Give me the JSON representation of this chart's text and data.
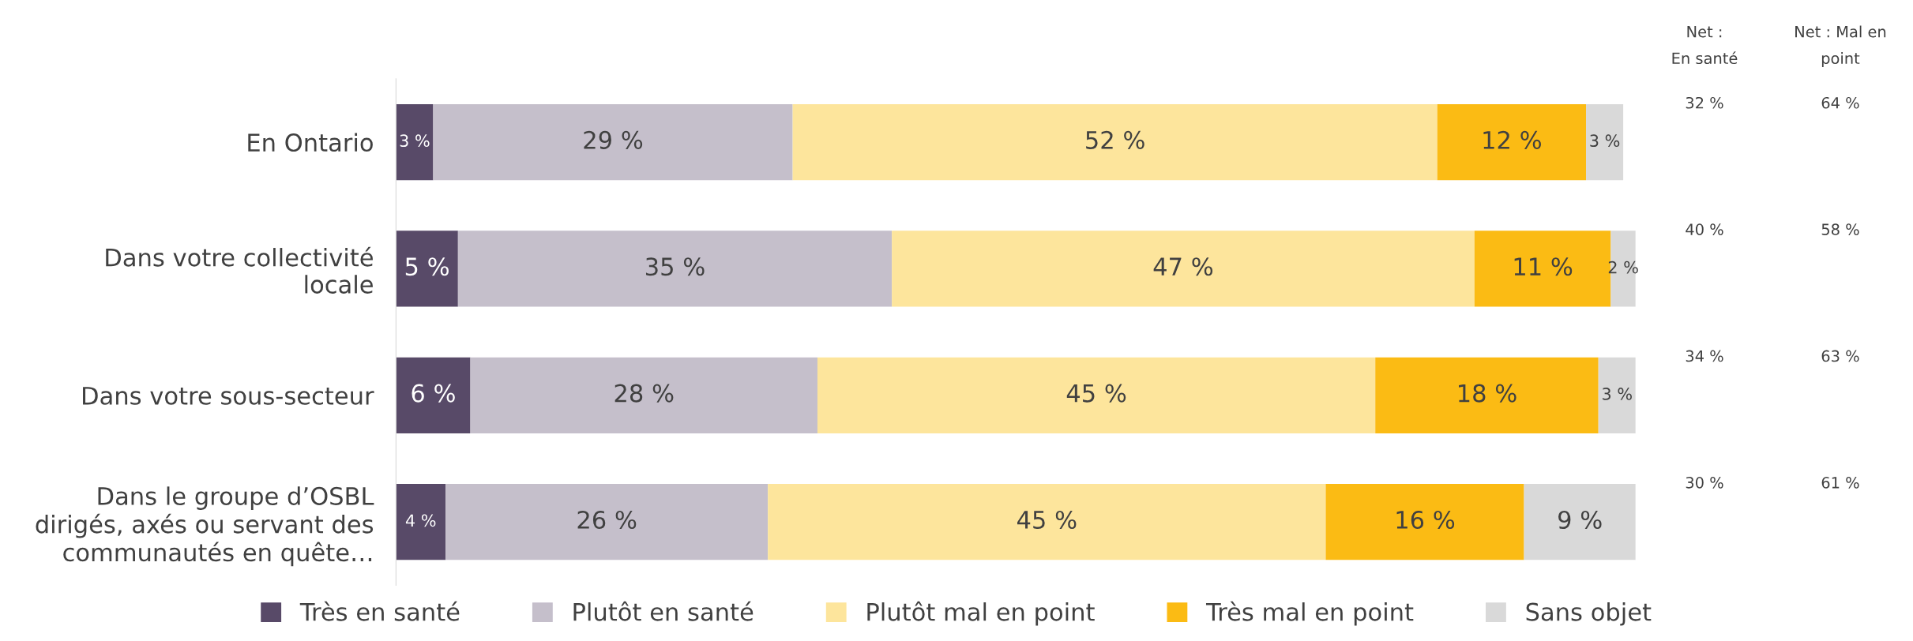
{
  "chart_data": {
    "type": "bar",
    "orientation": "horizontal",
    "stacked": true,
    "data_labels": true,
    "legend": "bottom",
    "grid": false,
    "categories": [
      "En Ontario",
      "Dans votre collectivité\nlocale",
      "Dans votre sous-secteur",
      "Dans le groupe d’OSBL\ndirigés, axés ou servant des\ncommunautés en quête…"
    ],
    "series": [
      {
        "name": "Très en santé",
        "color": "#584a68",
        "values": [
          3,
          5,
          6,
          4
        ],
        "value_labels": [
          "3 %",
          "5 %",
          "6 %",
          "4 %"
        ]
      },
      {
        "name": "Plutôt en santé",
        "color": "#c5bfcb",
        "values": [
          29,
          35,
          28,
          26
        ],
        "value_labels": [
          "29 %",
          "35 %",
          "28 %",
          "26 %"
        ]
      },
      {
        "name": "Plutôt mal en point",
        "color": "#fde59c",
        "values": [
          52,
          47,
          45,
          45
        ],
        "value_labels": [
          "52 %",
          "47 %",
          "45 %",
          "45 %"
        ]
      },
      {
        "name": "Très mal en point",
        "color": "#fbbb14",
        "values": [
          12,
          11,
          18,
          16
        ],
        "value_labels": [
          "12 %",
          "11 %",
          "18 %",
          "16 %"
        ]
      },
      {
        "name": "Sans objet",
        "color": "#d9d9d9",
        "values": [
          3,
          2,
          3,
          9
        ],
        "value_labels": [
          "3 %",
          "2 %",
          "3 %",
          "9 %"
        ]
      }
    ],
    "annotations": [
      "Net :\nEn santé",
      "Net : Mal en\npoint",
      "32 %",
      "64 %",
      "40 %",
      "58 %",
      "34 %",
      "63 %",
      "30 %",
      "61 %"
    ]
  }
}
